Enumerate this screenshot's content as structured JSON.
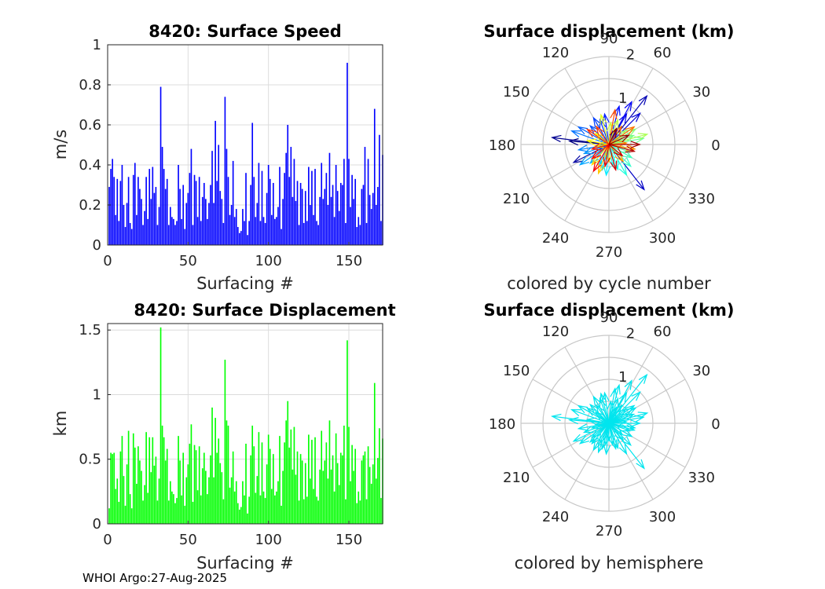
{
  "footer": "WHOI Argo:27-Aug-2025",
  "chart_data": [
    {
      "id": "speed",
      "type": "bar",
      "title": "8420: Surface Speed",
      "xlabel": "Surfacing #",
      "ylabel": "m/s",
      "xlim": [
        0,
        171
      ],
      "ylim": [
        0,
        1
      ],
      "xticks": [
        "0",
        "50",
        "100",
        "150"
      ],
      "yticks": [
        "0",
        "0.2",
        "0.4",
        "0.6",
        "0.8",
        "1"
      ],
      "color": "#0000ff",
      "values": [
        0.29,
        0.38,
        0.43,
        0.34,
        0.15,
        0.33,
        0.12,
        0.32,
        0.4,
        0.2,
        0.09,
        0.21,
        0.34,
        0.11,
        0.08,
        0.35,
        0.41,
        0.15,
        0.34,
        0.28,
        0.23,
        0.1,
        0.17,
        0.34,
        0.13,
        0.38,
        0.23,
        0.39,
        0.26,
        0.29,
        0.1,
        0.19,
        0.79,
        0.49,
        0.38,
        0.28,
        0.33,
        0.1,
        0.19,
        0.14,
        0.13,
        0.1,
        0.12,
        0.4,
        0.28,
        0.13,
        0.3,
        0.08,
        0.21,
        0.26,
        0.36,
        0.48,
        0.1,
        0.35,
        0.32,
        0.14,
        0.34,
        0.12,
        0.24,
        0.31,
        0.23,
        0.13,
        0.21,
        0.3,
        0.47,
        0.21,
        0.62,
        0.32,
        0.5,
        0.27,
        0.23,
        0.11,
        0.74,
        0.48,
        0.34,
        0.15,
        0.2,
        0.42,
        0.14,
        0.18,
        0.09,
        0.06,
        0.07,
        0.18,
        0.12,
        0.36,
        0.05,
        0.12,
        0.3,
        0.61,
        0.34,
        0.14,
        0.21,
        0.41,
        0.12,
        0.37,
        0.14,
        0.11,
        0.26,
        0.4,
        0.33,
        0.15,
        0.31,
        0.13,
        0.14,
        0.19,
        0.39,
        0.08,
        0.23,
        0.36,
        0.46,
        0.6,
        0.34,
        0.49,
        0.24,
        0.43,
        0.22,
        0.32,
        0.1,
        0.31,
        0.28,
        0.11,
        0.27,
        0.12,
        0.39,
        0.2,
        0.37,
        0.15,
        0.38,
        0.12,
        0.1,
        0.24,
        0.41,
        0.23,
        0.28,
        0.36,
        0.2,
        0.46,
        0.24,
        0.3,
        0.14,
        0.4,
        0.27,
        0.17,
        0.31,
        0.3,
        0.43,
        0.11,
        0.91,
        0.43,
        0.19,
        0.35,
        0.23,
        0.33,
        0.09,
        0.14,
        0.1,
        0.28,
        0.3,
        0.49,
        0.11,
        0.43,
        0.25,
        0.18,
        0.26,
        0.68,
        0.2,
        0.29,
        0.55,
        0.12,
        0.45
      ]
    },
    {
      "id": "displacement",
      "type": "bar",
      "title": "8420: Surface Displacement",
      "xlabel": "Surfacing #",
      "ylabel": "km",
      "xlim": [
        0,
        171
      ],
      "ylim": [
        0,
        1.55
      ],
      "xticks": [
        "0",
        "50",
        "100",
        "150"
      ],
      "yticks": [
        "0",
        "0.5",
        "1",
        "1.5"
      ],
      "color": "#00ff00",
      "values": [
        0.12,
        0.55,
        0.54,
        0.55,
        0.27,
        0.35,
        0.17,
        0.56,
        0.68,
        0.37,
        0.14,
        0.46,
        0.72,
        0.23,
        0.12,
        0.7,
        0.59,
        0.31,
        0.6,
        0.49,
        0.41,
        0.18,
        0.3,
        0.71,
        0.24,
        0.67,
        0.4,
        0.67,
        0.45,
        0.52,
        0.18,
        0.35,
        1.52,
        0.76,
        0.67,
        0.49,
        0.58,
        0.18,
        0.33,
        0.25,
        0.23,
        0.16,
        0.2,
        0.68,
        0.49,
        0.22,
        0.55,
        0.14,
        0.36,
        0.46,
        0.62,
        0.77,
        0.17,
        0.61,
        0.57,
        0.26,
        0.6,
        0.22,
        0.43,
        0.55,
        0.41,
        0.23,
        0.36,
        0.53,
        0.9,
        0.36,
        0.82,
        0.55,
        0.66,
        0.47,
        0.4,
        0.19,
        1.27,
        0.8,
        0.76,
        0.28,
        0.36,
        0.56,
        0.25,
        0.33,
        0.16,
        0.11,
        0.13,
        0.33,
        0.22,
        0.62,
        0.08,
        0.21,
        0.53,
        0.76,
        0.6,
        0.24,
        0.37,
        0.71,
        0.22,
        0.63,
        0.25,
        0.2,
        0.46,
        0.69,
        0.58,
        0.27,
        0.54,
        0.22,
        0.25,
        0.33,
        0.68,
        0.14,
        0.41,
        0.63,
        0.8,
        0.95,
        0.59,
        0.73,
        0.42,
        0.75,
        0.38,
        0.56,
        0.18,
        0.54,
        0.49,
        0.19,
        0.47,
        0.21,
        0.69,
        0.35,
        0.65,
        0.27,
        0.67,
        0.21,
        0.18,
        0.42,
        0.72,
        0.41,
        0.49,
        0.63,
        0.35,
        0.8,
        0.42,
        0.53,
        0.25,
        0.7,
        0.47,
        0.3,
        0.55,
        0.53,
        0.76,
        0.19,
        1.42,
        0.75,
        0.33,
        0.61,
        0.41,
        0.58,
        0.16,
        0.25,
        0.18,
        0.49,
        0.53,
        0.56,
        0.19,
        0.6,
        0.44,
        0.31,
        0.46,
        1.09,
        0.35,
        0.51,
        0.74,
        0.2,
        0.66
      ]
    },
    {
      "id": "polar-cycle",
      "type": "polar",
      "title": "Surface displacement (km)",
      "caption": "colored by cycle number",
      "rmax": 2,
      "rticks": [
        "1",
        "2"
      ],
      "angle_ticks": [
        "0",
        "30",
        "60",
        "90",
        "120",
        "150",
        "180",
        "210",
        "240",
        "270",
        "300",
        "330"
      ],
      "color_mode": "cycle",
      "arrows": [
        [
          0.9,
          175
        ],
        [
          1.3,
          173
        ],
        [
          0.9,
          207
        ],
        [
          1.4,
          52
        ],
        [
          1.3,
          308
        ],
        [
          1.0,
          45
        ],
        [
          0.8,
          60
        ],
        [
          1.1,
          62
        ],
        [
          0.9,
          75
        ],
        [
          0.7,
          98
        ],
        [
          0.6,
          110
        ],
        [
          0.7,
          120
        ],
        [
          0.6,
          135
        ],
        [
          0.8,
          150
        ],
        [
          0.9,
          160
        ],
        [
          0.7,
          190
        ],
        [
          0.6,
          200
        ],
        [
          0.8,
          215
        ],
        [
          0.6,
          225
        ],
        [
          0.5,
          245
        ],
        [
          0.6,
          255
        ],
        [
          0.7,
          265
        ],
        [
          0.5,
          280
        ],
        [
          0.6,
          290
        ],
        [
          0.8,
          300
        ],
        [
          0.7,
          315
        ],
        [
          0.6,
          330
        ],
        [
          0.5,
          340
        ],
        [
          0.8,
          10
        ],
        [
          0.6,
          20
        ],
        [
          0.7,
          30
        ],
        [
          0.5,
          40
        ],
        [
          0.9,
          15
        ],
        [
          0.6,
          70
        ],
        [
          0.5,
          85
        ],
        [
          0.7,
          105
        ],
        [
          0.4,
          140
        ],
        [
          0.5,
          170
        ],
        [
          0.3,
          185
        ],
        [
          0.6,
          230
        ],
        [
          0.7,
          250
        ],
        [
          0.4,
          270
        ],
        [
          0.5,
          310
        ],
        [
          0.6,
          350
        ],
        [
          0.4,
          5
        ],
        [
          0.7,
          35
        ],
        [
          0.5,
          55
        ],
        [
          0.8,
          80
        ],
        [
          0.5,
          125
        ],
        [
          0.6,
          145
        ],
        [
          0.4,
          195
        ],
        [
          0.5,
          220
        ],
        [
          0.7,
          240
        ],
        [
          0.5,
          260
        ],
        [
          0.6,
          285
        ],
        [
          0.4,
          320
        ],
        [
          0.6,
          345
        ],
        [
          0.7,
          0
        ],
        [
          0.5,
          25
        ],
        [
          0.4,
          65
        ]
      ]
    },
    {
      "id": "polar-hemisphere",
      "type": "polar",
      "title": "Surface displacement (km)",
      "caption": "colored by hemisphere",
      "rmax": 2,
      "rticks": [
        "1",
        "2"
      ],
      "angle_ticks": [
        "0",
        "30",
        "60",
        "90",
        "120",
        "150",
        "180",
        "210",
        "240",
        "270",
        "300",
        "330"
      ],
      "color_mode": "single",
      "color": "#00e5ee",
      "arrows": [
        [
          0.9,
          175
        ],
        [
          1.3,
          173
        ],
        [
          0.9,
          207
        ],
        [
          1.4,
          52
        ],
        [
          1.3,
          308
        ],
        [
          1.0,
          45
        ],
        [
          0.8,
          60
        ],
        [
          1.1,
          62
        ],
        [
          0.9,
          75
        ],
        [
          0.7,
          98
        ],
        [
          0.6,
          110
        ],
        [
          0.7,
          120
        ],
        [
          0.6,
          135
        ],
        [
          0.8,
          150
        ],
        [
          0.9,
          160
        ],
        [
          0.7,
          190
        ],
        [
          0.6,
          200
        ],
        [
          0.8,
          215
        ],
        [
          0.6,
          225
        ],
        [
          0.5,
          245
        ],
        [
          0.6,
          255
        ],
        [
          0.7,
          265
        ],
        [
          0.5,
          280
        ],
        [
          0.6,
          290
        ],
        [
          0.8,
          300
        ],
        [
          0.7,
          315
        ],
        [
          0.6,
          330
        ],
        [
          0.5,
          340
        ],
        [
          0.8,
          10
        ],
        [
          0.6,
          20
        ],
        [
          0.7,
          30
        ],
        [
          0.5,
          40
        ],
        [
          0.9,
          15
        ],
        [
          0.6,
          70
        ],
        [
          0.5,
          85
        ],
        [
          0.7,
          105
        ],
        [
          0.4,
          140
        ],
        [
          0.5,
          170
        ],
        [
          0.3,
          185
        ],
        [
          0.6,
          230
        ],
        [
          0.7,
          250
        ],
        [
          0.4,
          270
        ],
        [
          0.5,
          310
        ],
        [
          0.6,
          350
        ],
        [
          0.4,
          5
        ],
        [
          0.7,
          35
        ],
        [
          0.5,
          55
        ],
        [
          0.8,
          80
        ],
        [
          0.5,
          125
        ],
        [
          0.6,
          145
        ],
        [
          0.4,
          195
        ],
        [
          0.5,
          220
        ],
        [
          0.7,
          240
        ],
        [
          0.5,
          260
        ],
        [
          0.6,
          285
        ],
        [
          0.4,
          320
        ],
        [
          0.6,
          345
        ],
        [
          0.7,
          0
        ],
        [
          0.5,
          25
        ],
        [
          0.4,
          65
        ]
      ]
    }
  ]
}
